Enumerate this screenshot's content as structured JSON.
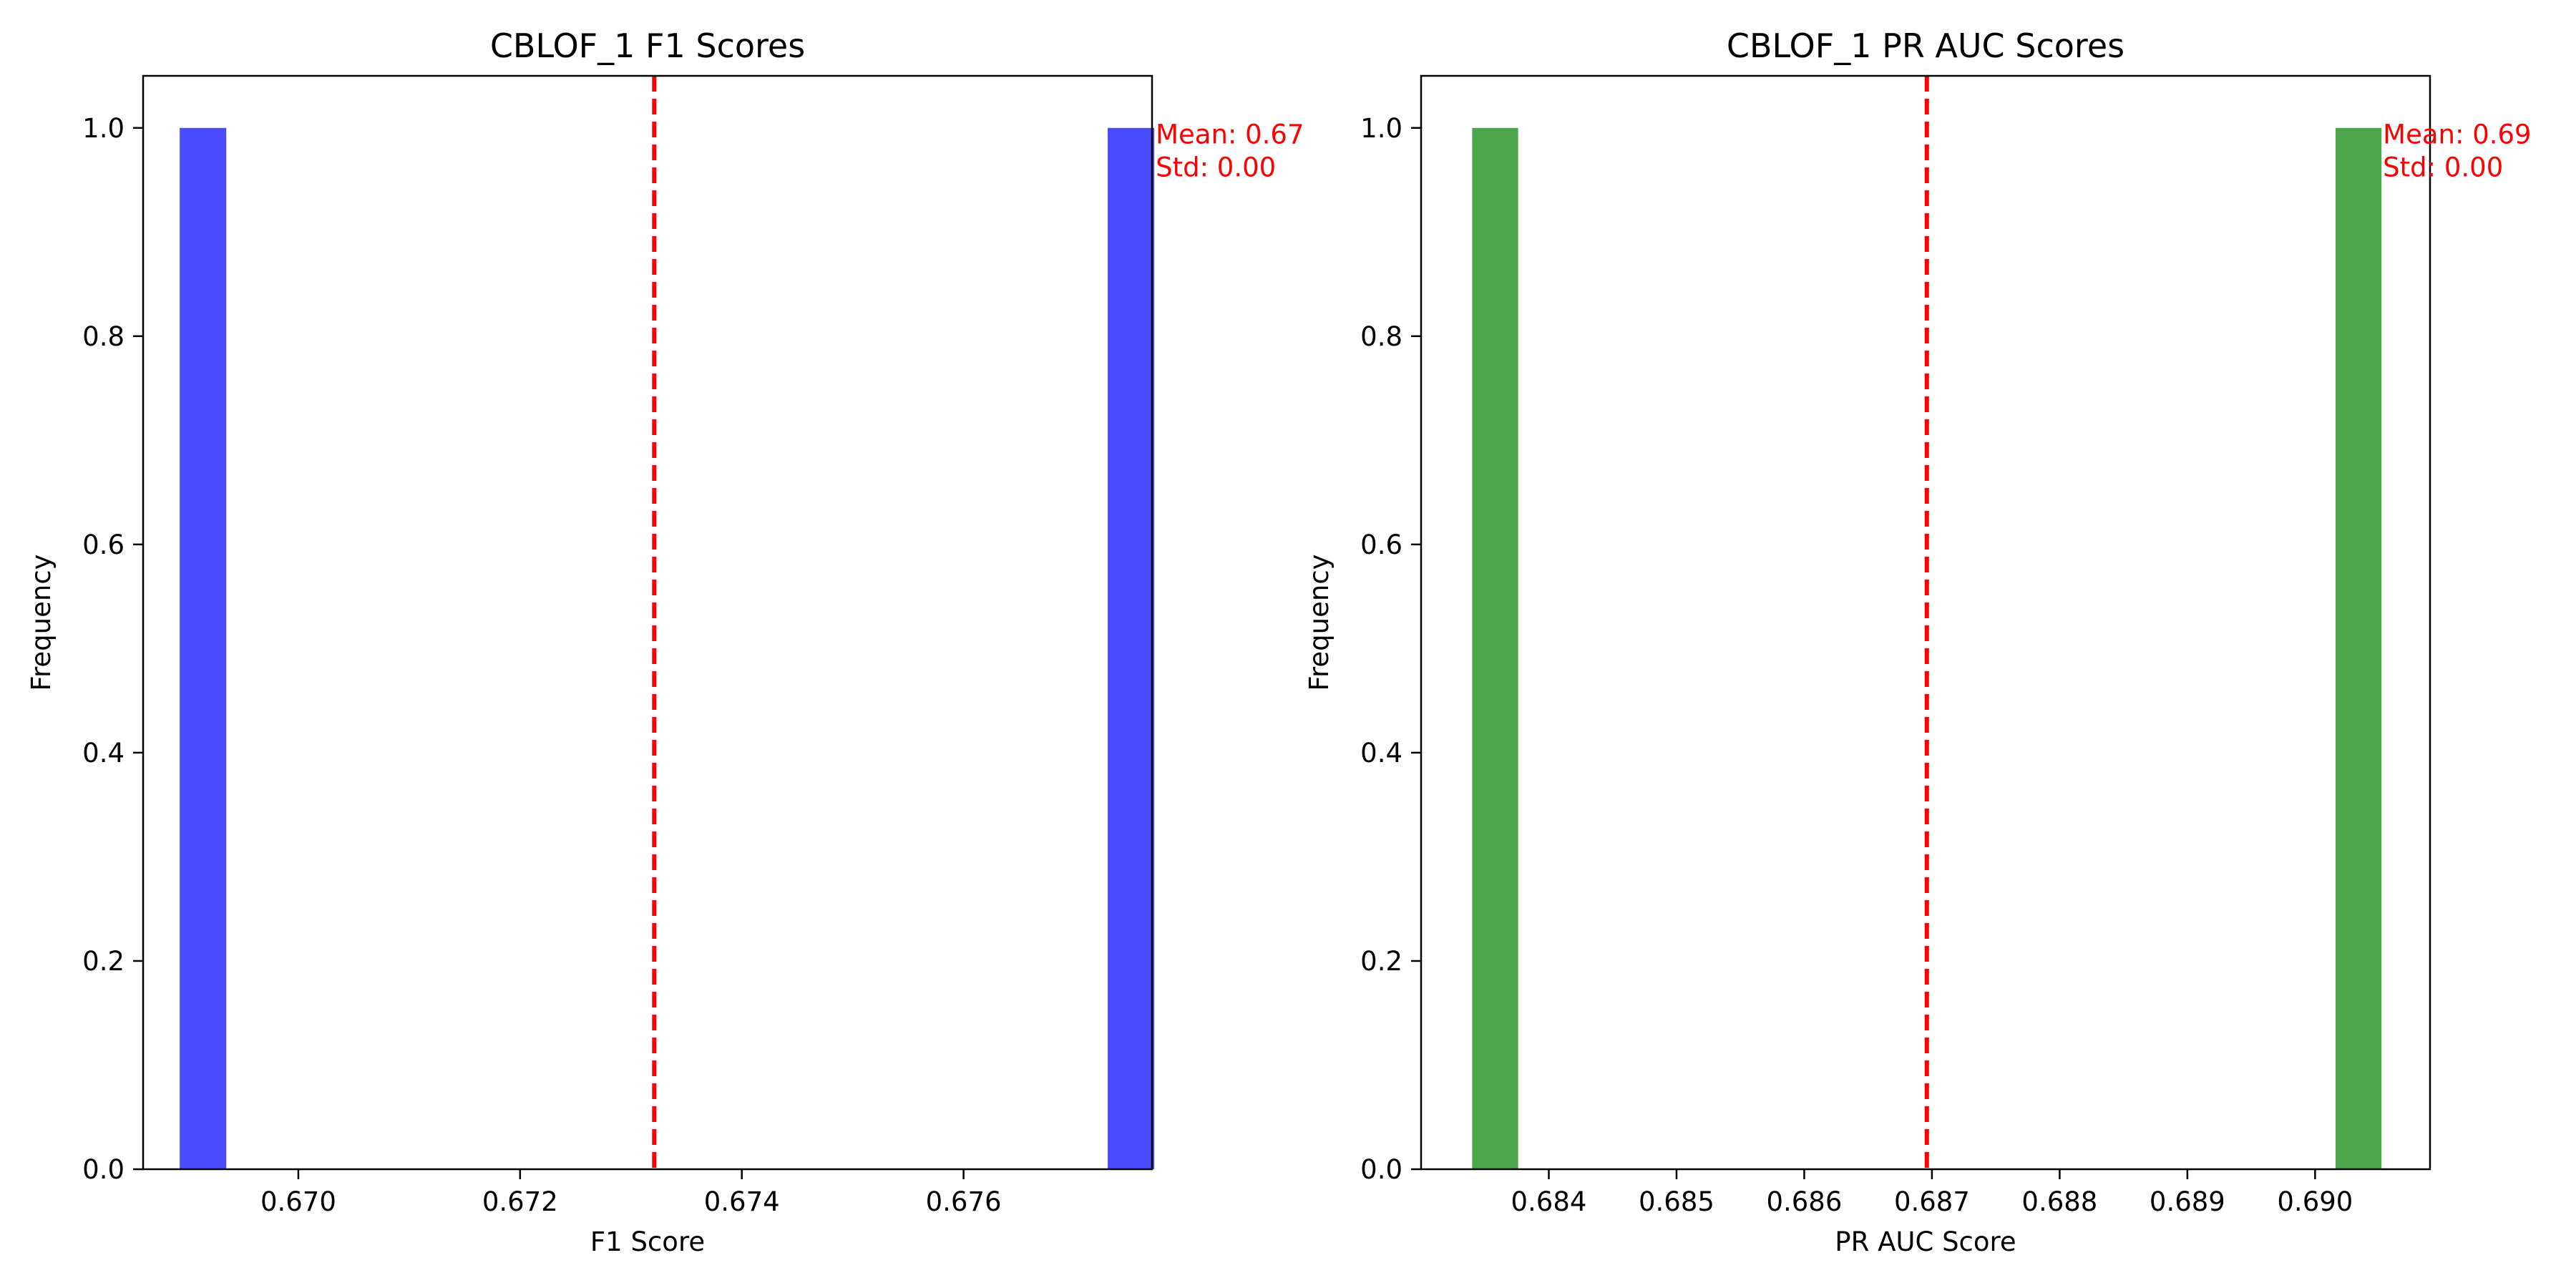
{
  "colors": {
    "f1_bar": "#4b4bff",
    "prauc_bar": "#4ca64c",
    "mean_line": "#ff0000",
    "annotation": "#ff0000",
    "axes": "#000000"
  },
  "chart_data": [
    {
      "type": "bar",
      "title": "CBLOF_1 F1 Scores",
      "xlabel": "F1 Score",
      "ylabel": "Frequency",
      "xlim": [
        0.6686,
        0.6777
      ],
      "ylim": [
        0.0,
        1.05
      ],
      "xticks": [
        {
          "value": 0.67,
          "label": "0.670"
        },
        {
          "value": 0.672,
          "label": "0.672"
        },
        {
          "value": 0.674,
          "label": "0.674"
        },
        {
          "value": 0.676,
          "label": "0.676"
        }
      ],
      "yticks": [
        {
          "value": 0.0,
          "label": "0.0"
        },
        {
          "value": 0.2,
          "label": "0.2"
        },
        {
          "value": 0.4,
          "label": "0.4"
        },
        {
          "value": 0.6,
          "label": "0.6"
        },
        {
          "value": 0.8,
          "label": "0.8"
        },
        {
          "value": 1.0,
          "label": "1.0"
        }
      ],
      "bars": [
        {
          "x0": 0.66893,
          "x1": 0.66935,
          "value": 1
        },
        {
          "x0": 0.6773,
          "x1": 0.67772,
          "value": 1
        }
      ],
      "mean_line": 0.67321,
      "annotation": {
        "lines": [
          "Mean: 0.67",
          "Std: 0.00"
        ],
        "x": 0.67772,
        "y": 0.985
      },
      "color_key": "f1_bar"
    },
    {
      "type": "bar",
      "title": "CBLOF_1 PR AUC Scores",
      "xlabel": "PR AUC Score",
      "ylabel": "Frequency",
      "xlim": [
        0.683,
        0.6909
      ],
      "ylim": [
        0.0,
        1.05
      ],
      "xticks": [
        {
          "value": 0.684,
          "label": "0.684"
        },
        {
          "value": 0.685,
          "label": "0.685"
        },
        {
          "value": 0.686,
          "label": "0.686"
        },
        {
          "value": 0.687,
          "label": "0.687"
        },
        {
          "value": 0.688,
          "label": "0.688"
        },
        {
          "value": 0.689,
          "label": "0.689"
        },
        {
          "value": 0.69,
          "label": "0.690"
        }
      ],
      "yticks": [
        {
          "value": 0.0,
          "label": "0.0"
        },
        {
          "value": 0.2,
          "label": "0.2"
        },
        {
          "value": 0.4,
          "label": "0.4"
        },
        {
          "value": 0.6,
          "label": "0.6"
        },
        {
          "value": 0.8,
          "label": "0.8"
        },
        {
          "value": 1.0,
          "label": "1.0"
        }
      ],
      "bars": [
        {
          "x0": 0.6834,
          "x1": 0.68376,
          "value": 1
        },
        {
          "x0": 0.69016,
          "x1": 0.69052,
          "value": 1
        }
      ],
      "mean_line": 0.68696,
      "annotation": {
        "lines": [
          "Mean: 0.69",
          "Std: 0.00"
        ],
        "x": 0.69052,
        "y": 0.985
      },
      "color_key": "prauc_bar"
    }
  ]
}
